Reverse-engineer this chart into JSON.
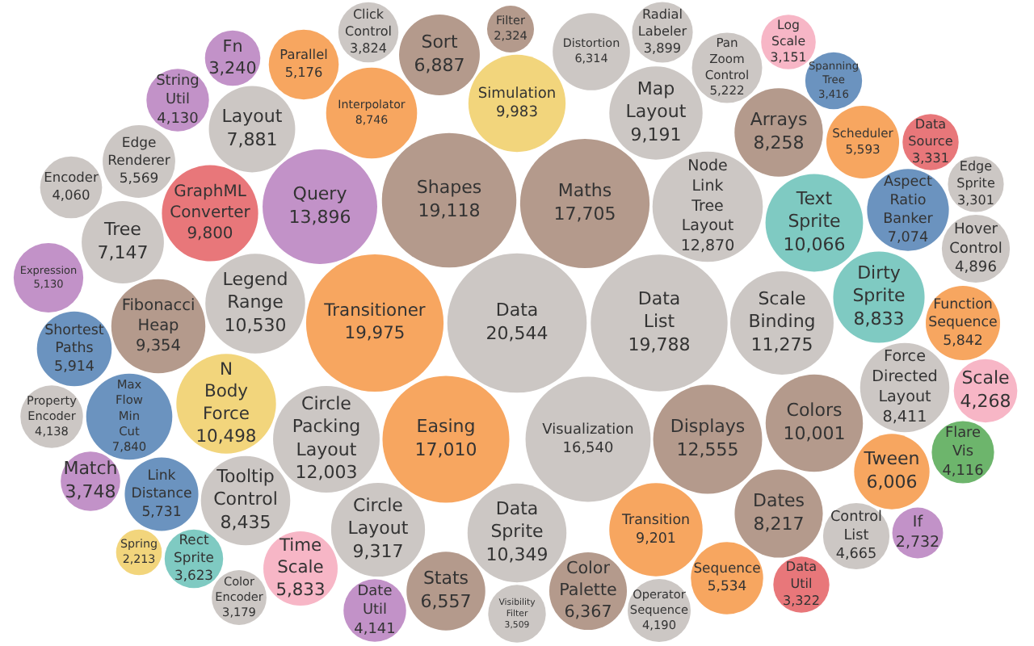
{
  "chart_data": {
    "type": "other",
    "categories": [
      "Operator Sequence",
      "Tooltip Control",
      "Visibility Filter",
      "Property Encoder",
      "Encoder",
      "Edge Sprite",
      "Color Encoder",
      "Circle Layout",
      "Query",
      "Arrays",
      "String Util",
      "GraphML Converter",
      "Simulation",
      "Sort",
      "Log Scale",
      "Scale",
      "N Body Force",
      "Expression",
      "Transition",
      "Tween",
      "Sequence",
      "Rect Sprite",
      "Parallel",
      "Spanning Tree",
      "Link Distance",
      "Aspect Ratio Banker",
      "Easing",
      "Hover Control",
      "Filter",
      "Maths",
      "Data",
      "Map Layout",
      "Color Palette",
      "Text Sprite",
      "Stats",
      "Distortion",
      "Click Control",
      "Radial Labeler",
      "Visualization",
      "Data Sprite",
      "Fibonacci Heap",
      "Dirty Sprite",
      "Node Link Tree Layout",
      "Control List",
      "Force Directed Layout",
      "Tree",
      "Shapes",
      "Layout",
      "Date Util",
      "Interpolator",
      "Max Flow Min Cut",
      "Shortest Paths",
      "Function Sequence",
      "Scheduler",
      "Flare Vis",
      "Data Source",
      "Data Util",
      "Spring",
      "If",
      "Fn",
      "Match",
      "Time Scale",
      "Dates",
      "Transitioner",
      "Data List",
      "Legend Range",
      "Pan Zoom Control",
      "Colors",
      "Edge Renderer",
      "Circle Packing Layout",
      "Displays",
      "Scale Binding"
    ],
    "values": [
      4190,
      8435,
      3509,
      4138,
      4060,
      3301,
      3179,
      9317,
      13896,
      8258,
      4130,
      9800,
      9983,
      6887,
      3151,
      4268,
      10498,
      5130,
      9201,
      6006,
      5534,
      3623,
      5176,
      3416,
      5731,
      7074,
      17010,
      4896,
      2324,
      17705,
      20544,
      9191,
      6367,
      10066,
      6557,
      6314,
      3824,
      3899,
      16540,
      10349,
      9354,
      8833,
      12870,
      4665,
      8411,
      7147,
      19118,
      7881,
      4141,
      8746,
      7840,
      5914,
      5842,
      5593,
      4116,
      3331,
      3322,
      2213,
      2732,
      3240,
      3748,
      5833,
      8217,
      19975,
      19788,
      10530,
      5222,
      10001,
      5569,
      12003,
      12555,
      11275
    ],
    "value_labels": [
      "4,190",
      "8,435",
      "3,509",
      "4,138",
      "4,060",
      "3,301",
      "3,179",
      "9,317",
      "13,896",
      "8,258",
      "4,130",
      "9,800",
      "9,983",
      "6,887",
      "3,151",
      "4,268",
      "10,498",
      "5,130",
      "9,201",
      "6,006",
      "5,534",
      "3,623",
      "5,176",
      "3,416",
      "5,731",
      "7,074",
      "17,010",
      "4,896",
      "2,324",
      "17,705",
      "20,544",
      "9,191",
      "6,367",
      "10,066",
      "6,557",
      "6,314",
      "3,824",
      "3,899",
      "16,540",
      "10,349",
      "9,354",
      "8,833",
      "12,870",
      "4,665",
      "8,411",
      "7,147",
      "19,118",
      "7,881",
      "4,141",
      "8,746",
      "7,840",
      "5,914",
      "5,842",
      "5,593",
      "4,116",
      "3,331",
      "3,322",
      "2,213",
      "2,732",
      "3,240",
      "3,748",
      "5,833",
      "8,217",
      "19,975",
      "19,788",
      "10,530",
      "5,222",
      "10,001",
      "5,569",
      "12,003",
      "12,555",
      "11,275"
    ],
    "colors": [
      "#ccc7c4",
      "#ccc7c4",
      "#ccc7c4",
      "#ccc7c4",
      "#ccc7c4",
      "#ccc7c4",
      "#ccc7c4",
      "#ccc7c4",
      "#c292c8",
      "#b49a8c",
      "#c292c8",
      "#e8777a",
      "#f2d57c",
      "#b49a8c",
      "#f7b6c6",
      "#f7b6c6",
      "#f2d57c",
      "#c292c8",
      "#f7a660",
      "#f7a660",
      "#f7a660",
      "#7fcac2",
      "#f7a660",
      "#6b93bf",
      "#6b93bf",
      "#6b93bf",
      "#f7a660",
      "#ccc7c4",
      "#b49a8c",
      "#b49a8c",
      "#ccc7c4",
      "#ccc7c4",
      "#b49a8c",
      "#7fcac2",
      "#b49a8c",
      "#ccc7c4",
      "#ccc7c4",
      "#ccc7c4",
      "#ccc7c4",
      "#ccc7c4",
      "#b49a8c",
      "#7fcac2",
      "#ccc7c4",
      "#ccc7c4",
      "#ccc7c4",
      "#ccc7c4",
      "#b49a8c",
      "#ccc7c4",
      "#c292c8",
      "#f7a660",
      "#6b93bf",
      "#6b93bf",
      "#f7a660",
      "#f7a660",
      "#6db56c",
      "#e8777a",
      "#e8777a",
      "#f2d57c",
      "#c292c8",
      "#c292c8",
      "#c292c8",
      "#f7b6c6",
      "#b49a8c",
      "#f7a660",
      "#ccc7c4",
      "#ccc7c4",
      "#ccc7c4",
      "#b49a8c",
      "#ccc7c4",
      "#ccc7c4",
      "#b49a8c",
      "#ccc7c4"
    ]
  }
}
